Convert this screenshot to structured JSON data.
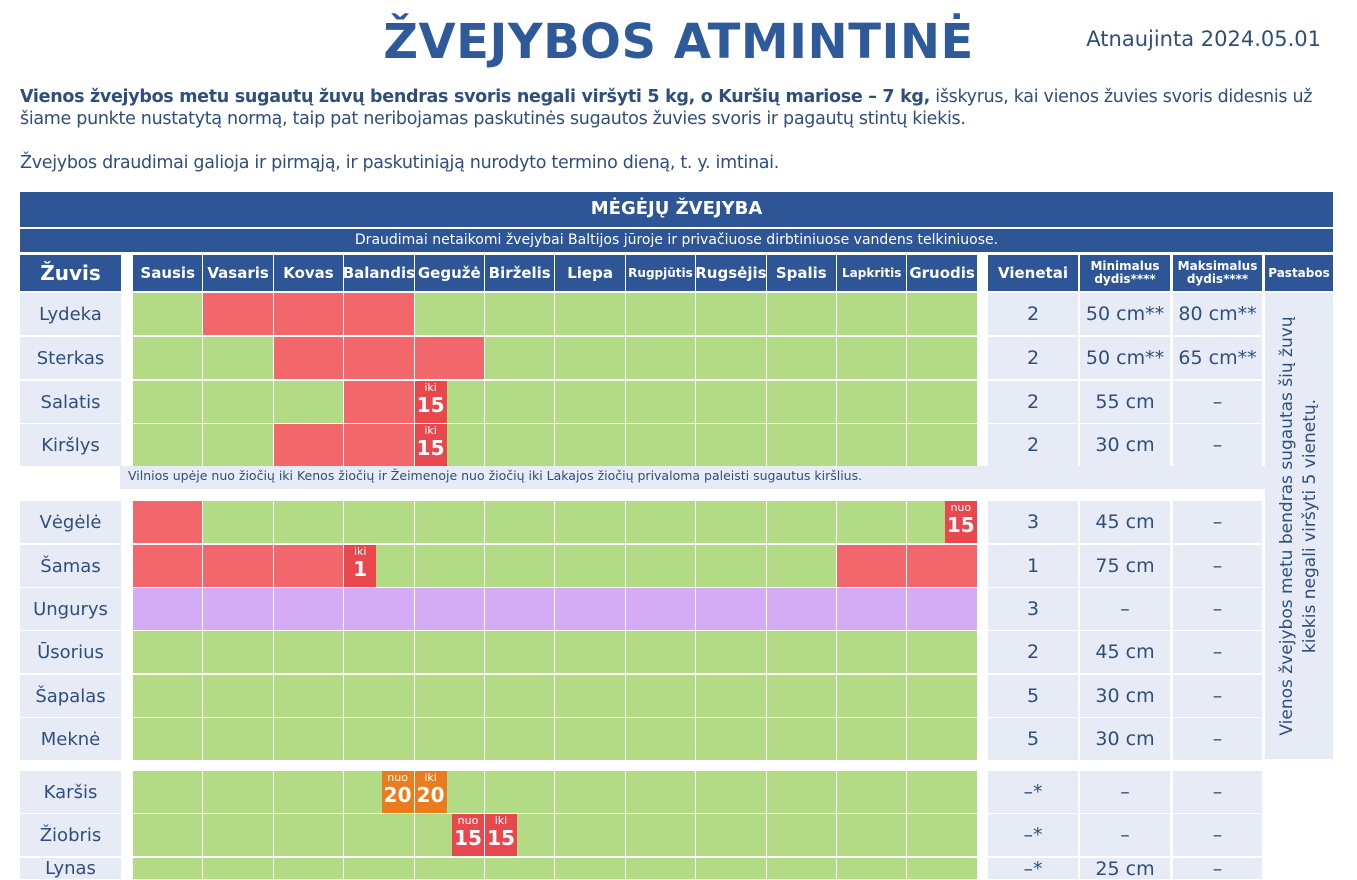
{
  "header": {
    "title": "ŽVEJYBOS ATMINTINĖ",
    "updated": "Atnaujinta 2024.05.01"
  },
  "intro": {
    "bold": "Vienos žvejybos metu sugautų žuvų bendras svoris negali viršyti 5 kg, o Kuršių mariose – 7 kg,",
    "rest": " išskyrus, kai vienos žuvies svoris didesnis už šiame punkte nustatytą normą, taip pat neribojamas paskutinės sugautos žuvies svoris ir pagautų stintų kiekis.",
    "note": "Žvejybos draudimai galioja ir pirmąją, ir paskutiniąją nurodyto termino dieną, t. y. imtinai."
  },
  "section": {
    "title": "MĖGĖJŲ ŽVEJYBA",
    "subtitle": "Draudimai netaikomi žvejybai Baltijos jūroje ir privačiuose dirbtiniuose vandens telkiniuose."
  },
  "columns": {
    "fish": "Žuvis",
    "months": [
      "Sausis",
      "Vasaris",
      "Kovas",
      "Balandis",
      "Gegužė",
      "Birželis",
      "Liepa",
      "Rugpjūtis",
      "Rugsėjis",
      "Spalis",
      "Lapkritis",
      "Gruodis"
    ],
    "units": "Vienetai",
    "min_size": "Minimalus dydis****",
    "max_size": "Maksimalus dydis****",
    "remarks": "Pastabos"
  },
  "colors": {
    "allowed": "#b3db85",
    "banned": "#f2676c",
    "special": "#d4acf5",
    "partial": "#f3964b",
    "header": "#2e5596"
  },
  "group_note": "Vilnios upėje nuo žiočių iki Kenos žiočių ir Žeimenoje nuo žiočių iki Lakajos žiočių privaloma paleisti sugautus kiršlius.",
  "remark_text": "Vienos žvejybos metu bendras sugautas šių žuvų kiekis negali viršyti 5 vienetų.",
  "rows": [
    {
      "name": "Lydeka",
      "units": "2",
      "min": "50 cm**",
      "max": "80 cm**",
      "months": [
        "g",
        "r",
        "r",
        "r",
        "g",
        "g",
        "g",
        "g",
        "g",
        "g",
        "g",
        "g"
      ],
      "badges": []
    },
    {
      "name": "Sterkas",
      "units": "2",
      "min": "50 cm**",
      "max": "65 cm**",
      "months": [
        "g",
        "g",
        "r",
        "r",
        "r",
        "g",
        "g",
        "g",
        "g",
        "g",
        "g",
        "g"
      ],
      "badges": []
    },
    {
      "name": "Salatis",
      "units": "2",
      "min": "55 cm",
      "max": "–",
      "months": [
        "g",
        "g",
        "g",
        "r",
        "g",
        "g",
        "g",
        "g",
        "g",
        "g",
        "g",
        "g"
      ],
      "badges": [
        {
          "month": 4,
          "text": "iki",
          "num": "15",
          "color": "r"
        }
      ]
    },
    {
      "name": "Kiršlys",
      "units": "2",
      "min": "30 cm",
      "max": "–",
      "months": [
        "g",
        "g",
        "r",
        "r",
        "g",
        "g",
        "g",
        "g",
        "g",
        "g",
        "g",
        "g"
      ],
      "badges": [
        {
          "month": 4,
          "text": "iki",
          "num": "15",
          "color": "r"
        }
      ]
    },
    {
      "name": "Vėgėlė",
      "units": "3",
      "min": "45 cm",
      "max": "–",
      "months": [
        "r",
        "g",
        "g",
        "g",
        "g",
        "g",
        "g",
        "g",
        "g",
        "g",
        "g",
        "g"
      ],
      "badges": [
        {
          "month": 11,
          "text": "nuo",
          "num": "15",
          "color": "r",
          "align": "right"
        }
      ]
    },
    {
      "name": "Šamas",
      "units": "1",
      "min": "75 cm",
      "max": "–",
      "months": [
        "r",
        "r",
        "r",
        "g",
        "g",
        "g",
        "g",
        "g",
        "g",
        "g",
        "r",
        "r"
      ],
      "badges": [
        {
          "month": 3,
          "text": "iki",
          "num": "1",
          "color": "r"
        }
      ]
    },
    {
      "name": "Ungurys",
      "units": "3",
      "min": "–",
      "max": "–",
      "months": [
        "p",
        "p",
        "p",
        "p",
        "p",
        "p",
        "p",
        "p",
        "p",
        "p",
        "p",
        "p"
      ],
      "badges": []
    },
    {
      "name": "Ūsorius",
      "units": "2",
      "min": "45 cm",
      "max": "–",
      "months": [
        "g",
        "g",
        "g",
        "g",
        "g",
        "g",
        "g",
        "g",
        "g",
        "g",
        "g",
        "g"
      ],
      "badges": []
    },
    {
      "name": "Šapalas",
      "units": "5",
      "min": "30 cm",
      "max": "–",
      "months": [
        "g",
        "g",
        "g",
        "g",
        "g",
        "g",
        "g",
        "g",
        "g",
        "g",
        "g",
        "g"
      ],
      "badges": []
    },
    {
      "name": "Meknė",
      "units": "5",
      "min": "30 cm",
      "max": "–",
      "months": [
        "g",
        "g",
        "g",
        "g",
        "g",
        "g",
        "g",
        "g",
        "g",
        "g",
        "g",
        "g"
      ],
      "badges": []
    },
    {
      "name": "Karšis",
      "units": "–*",
      "min": "–",
      "max": "–",
      "months": [
        "g",
        "g",
        "g",
        "g",
        "g",
        "g",
        "g",
        "g",
        "g",
        "g",
        "g",
        "g"
      ],
      "badges": [
        {
          "month": 3,
          "text": "nuo",
          "num": "20",
          "color": "o",
          "align": "right"
        },
        {
          "month": 4,
          "text": "iki",
          "num": "20",
          "color": "o"
        }
      ]
    },
    {
      "name": "Žiobris",
      "units": "–*",
      "min": "–",
      "max": "–",
      "months": [
        "g",
        "g",
        "g",
        "g",
        "g",
        "g",
        "g",
        "g",
        "g",
        "g",
        "g",
        "g"
      ],
      "badges": [
        {
          "month": 4,
          "text": "nuo",
          "num": "15",
          "color": "r",
          "align": "right"
        },
        {
          "month": 5,
          "text": "iki",
          "num": "15",
          "color": "r"
        }
      ]
    },
    {
      "name": "Lynas",
      "units": "–*",
      "min": "25 cm",
      "max": "–",
      "months": [
        "g",
        "g",
        "g",
        "g",
        "g",
        "g",
        "g",
        "g",
        "g",
        "g",
        "g",
        "g"
      ],
      "badges": []
    }
  ]
}
